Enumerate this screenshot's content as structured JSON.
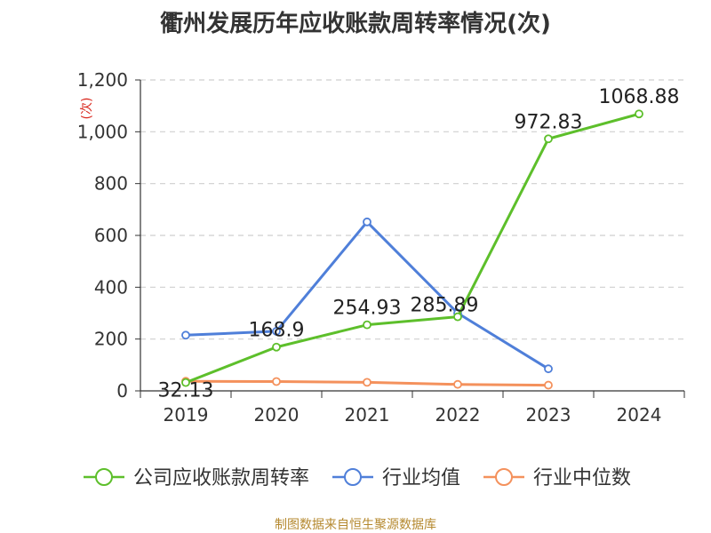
{
  "page": {
    "title": "衢州发展历年应收账款周转率情况(次)",
    "source": "制图数据来自恒生聚源数据库"
  },
  "chart_data": {
    "type": "line",
    "title": "衢州发展历年应收账款周转率情况(次)",
    "ylabel": "(次)",
    "xlabel": "",
    "categories": [
      "2019",
      "2020",
      "2021",
      "2022",
      "2023",
      "2024"
    ],
    "ylim": [
      0,
      1200
    ],
    "yticks": [
      0,
      200,
      400,
      600,
      800,
      1000,
      1200
    ],
    "ytick_labels": [
      "0",
      "200",
      "400",
      "600",
      "800",
      "1,000",
      "1,200"
    ],
    "grid": true,
    "legend_position": "bottom",
    "series": [
      {
        "name": "公司应收账款周转率",
        "color": "#5dbf2b",
        "values": [
          32.13,
          168.9,
          254.93,
          285.89,
          972.83,
          1068.88
        ],
        "labels": [
          "32.13",
          "168.9",
          "254.93",
          "285.89",
          "972.83",
          "1068.88"
        ]
      },
      {
        "name": "行业均值",
        "color": "#4f7fd9",
        "values": [
          215,
          230,
          652,
          300,
          85,
          null
        ],
        "labels": []
      },
      {
        "name": "行业中位数",
        "color": "#f4915c",
        "values": [
          37,
          36,
          33,
          25,
          22,
          null
        ],
        "labels": []
      }
    ]
  }
}
